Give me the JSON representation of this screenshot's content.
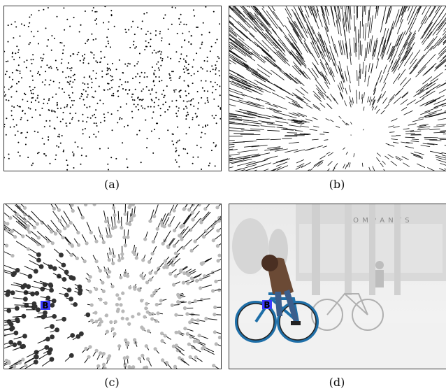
{
  "figure": {
    "panels": [
      {
        "caption": "(a)",
        "content": "feature points"
      },
      {
        "caption": "(b)",
        "content": "motion vectors"
      },
      {
        "caption": "(c)",
        "content": "clustered motion vectors",
        "marker": "B"
      },
      {
        "caption": "(d)",
        "content": "segmented cyclist",
        "sign_text": "C O M P A N Y S",
        "marker": "B"
      }
    ],
    "colors": {
      "marker_fill": "#3a3aff",
      "cluster_dark": "#333333",
      "cluster_light": "#b8b8b8",
      "vector": "#111111"
    }
  }
}
